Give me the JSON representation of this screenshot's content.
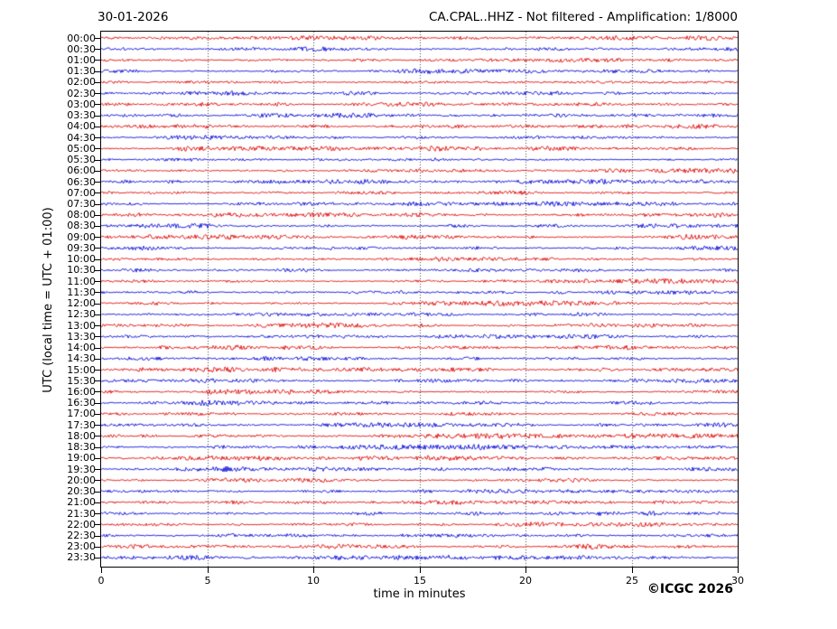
{
  "header": {
    "date": "30-01-2026",
    "station_title": "CA.CPAL..HHZ - Not filtered - Amplification: 1/8000"
  },
  "axes": {
    "y_label": "UTC (local time = UTC + 01:00)",
    "x_label": "time in minutes",
    "x_ticks": [
      0,
      5,
      10,
      15,
      20,
      25,
      30
    ],
    "x_range": [
      0,
      30
    ],
    "grid_minutes": [
      5,
      10,
      15,
      20,
      25
    ],
    "row_labels": [
      "00:00",
      "00:30",
      "01:00",
      "01:30",
      "02:00",
      "02:30",
      "03:00",
      "03:30",
      "04:00",
      "04:30",
      "05:00",
      "05:30",
      "06:00",
      "06:30",
      "07:00",
      "07:30",
      "08:00",
      "08:30",
      "09:00",
      "09:30",
      "10:00",
      "10:30",
      "11:00",
      "11:30",
      "12:00",
      "12:30",
      "13:00",
      "13:30",
      "14:00",
      "14:30",
      "15:00",
      "15:30",
      "16:00",
      "16:30",
      "17:00",
      "17:30",
      "18:00",
      "18:30",
      "19:00",
      "19:30",
      "20:00",
      "20:30",
      "21:00",
      "21:30",
      "22:00",
      "22:30",
      "23:00",
      "23:30"
    ]
  },
  "plot": {
    "trace_color_hour_rows": "#e00000",
    "trace_color_half_hour_rows": "#0000d8",
    "grid_color": "#444444",
    "axis_color": "#000000",
    "background": "#ffffff"
  },
  "footer": {
    "copyright": "©ICGC 2026"
  },
  "chart_data": {
    "type": "line",
    "subtype": "helicorder seismogram day plot",
    "title": "CA.CPAL..HHZ - Not filtered - Amplification: 1/8000",
    "date": "30-01-2026",
    "network": "CA",
    "station": "CPAL",
    "channel": "HHZ",
    "filter": "Not filtered",
    "amplification": "1/8000",
    "xlabel": "time in minutes",
    "ylabel": "UTC (local time = UTC + 01:00)",
    "x_range_minutes": [
      0,
      30
    ],
    "x_ticks": [
      0,
      5,
      10,
      15,
      20,
      25,
      30
    ],
    "grid": "vertical dotted gridlines every 5 minutes",
    "legend": "none",
    "rows": 48,
    "minutes_per_row": 30,
    "row_start_times_utc": [
      "00:00",
      "00:30",
      "01:00",
      "01:30",
      "02:00",
      "02:30",
      "03:00",
      "03:30",
      "04:00",
      "04:30",
      "05:00",
      "05:30",
      "06:00",
      "06:30",
      "07:00",
      "07:30",
      "08:00",
      "08:30",
      "09:00",
      "09:30",
      "10:00",
      "10:30",
      "11:00",
      "11:30",
      "12:00",
      "12:30",
      "13:00",
      "13:30",
      "14:00",
      "14:30",
      "15:00",
      "15:30",
      "16:00",
      "16:30",
      "17:00",
      "17:30",
      "18:00",
      "18:30",
      "19:00",
      "19:30",
      "20:00",
      "20:30",
      "21:00",
      "21:30",
      "22:00",
      "22:30",
      "23:00",
      "23:30"
    ],
    "row_color_pattern": "rows starting on the hour are red, rows starting on the half hour are blue",
    "series_description": "48 half-hour traces of continuous low-amplitude background seismic noise with intermittent small microseism bursts; no distinct earthquake events visible on any row"
  }
}
